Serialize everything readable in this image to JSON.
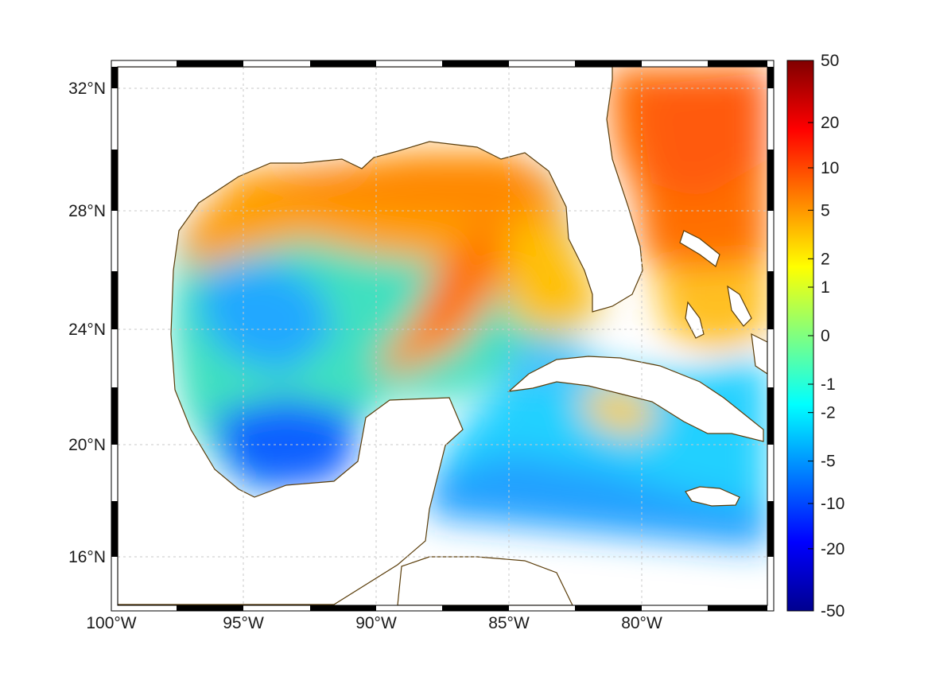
{
  "map": {
    "projection": "mercator",
    "extent": {
      "lon": [
        -100,
        -75
      ],
      "lat": [
        14,
        33
      ]
    },
    "colormap": "jet",
    "coastline_color": "#5a3d0a",
    "grid": true,
    "lon_ticks": [
      {
        "value": -100,
        "label": "100°W"
      },
      {
        "value": -95,
        "label": "95°W"
      },
      {
        "value": -90,
        "label": "90°W"
      },
      {
        "value": -85,
        "label": "85°W"
      },
      {
        "value": -80,
        "label": "80°W"
      }
    ],
    "lat_ticks": [
      {
        "value": 32,
        "label": "32°N"
      },
      {
        "value": 28,
        "label": "28°N"
      },
      {
        "value": 24,
        "label": "24°N"
      },
      {
        "value": 20,
        "label": "20°N"
      },
      {
        "value": 16,
        "label": "16°N"
      }
    ]
  },
  "colorbar": {
    "scale": "symmetric-log",
    "ticks": [
      {
        "value": 50,
        "label": "50"
      },
      {
        "value": 20,
        "label": "20"
      },
      {
        "value": 10,
        "label": "10"
      },
      {
        "value": 5,
        "label": "5"
      },
      {
        "value": 2,
        "label": "2"
      },
      {
        "value": 1,
        "label": "1"
      },
      {
        "value": 0,
        "label": "0"
      },
      {
        "value": -1,
        "label": "-1"
      },
      {
        "value": -2,
        "label": "-2"
      },
      {
        "value": -5,
        "label": "-5"
      },
      {
        "value": -10,
        "label": "-10"
      },
      {
        "value": -20,
        "label": "-20"
      },
      {
        "value": -50,
        "label": "-50"
      }
    ]
  }
}
